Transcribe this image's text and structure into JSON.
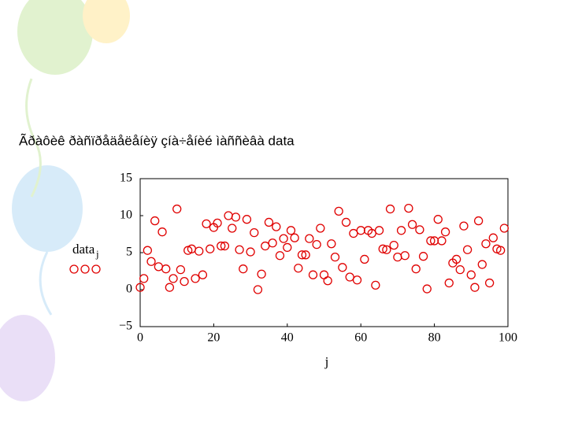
{
  "chart_data": {
    "type": "scatter",
    "title": "Ãðàôèê ðàñïðåäåëåíèÿ çíà÷åíèé  ìàññèâà data",
    "x_label": "j",
    "y_label": "data",
    "y_label_subscript": "j",
    "x": [
      0,
      1,
      2,
      3,
      4,
      5,
      6,
      7,
      8,
      9,
      10,
      11,
      12,
      13,
      14,
      15,
      16,
      17,
      18,
      19,
      20,
      21,
      22,
      23,
      24,
      25,
      26,
      27,
      28,
      29,
      30,
      31,
      32,
      33,
      34,
      35,
      36,
      37,
      38,
      39,
      40,
      41,
      42,
      43,
      44,
      45,
      46,
      47,
      48,
      49,
      50,
      51,
      52,
      53,
      54,
      55,
      56,
      57,
      58,
      59,
      60,
      61,
      62,
      63,
      64,
      65,
      66,
      67,
      68,
      69,
      70,
      71,
      72,
      73,
      74,
      75,
      76,
      77,
      78,
      79,
      80,
      81,
      82,
      83,
      84,
      85,
      86,
      87,
      88,
      89,
      90,
      91,
      92,
      93,
      94,
      95,
      96,
      97,
      98,
      99
    ],
    "values": [
      0.3,
      1.5,
      5.3,
      3.8,
      9.3,
      3.1,
      7.8,
      2.8,
      0.3,
      1.5,
      10.9,
      2.7,
      1.1,
      5.3,
      5.5,
      1.5,
      5.2,
      2.0,
      8.9,
      5.5,
      8.4,
      9.0,
      5.9,
      5.9,
      10.0,
      8.3,
      9.8,
      5.4,
      2.8,
      9.5,
      5.1,
      7.7,
      0,
      2.1,
      5.9,
      9.1,
      6.3,
      8.5,
      4.6,
      6.9,
      5.7,
      8.0,
      7.0,
      2.9,
      4.7,
      4.7,
      6.9,
      2.0,
      6.1,
      8.3,
      2.0,
      1.2,
      6.2,
      4.4,
      10.6,
      3.0,
      9.1,
      1.7,
      7.6,
      1.3,
      8.0,
      4.1,
      8.0,
      7.6,
      0.6,
      8.0,
      5.5,
      5.4,
      10.9,
      6.0,
      4.4,
      8.0,
      4.6,
      11.0,
      8.8,
      2.8,
      8.1,
      4.5,
      0.1,
      6.6,
      6.6,
      9.5,
      6.6,
      7.8,
      0.9,
      3.6,
      4.1,
      2.7,
      8.6,
      5.4,
      2.0,
      0.3,
      9.3,
      3.4,
      6.2,
      0.9,
      7.0,
      5.5,
      5.3,
      8.3
    ],
    "color": "#e00000",
    "xlim": [
      0,
      100
    ],
    "ylim": [
      -5,
      15
    ],
    "xticks": [
      0,
      20,
      40,
      60,
      80,
      100
    ],
    "yticks": [
      {
        "value": -5,
        "label": "−5"
      },
      0,
      5,
      10,
      15
    ],
    "grid": false
  }
}
